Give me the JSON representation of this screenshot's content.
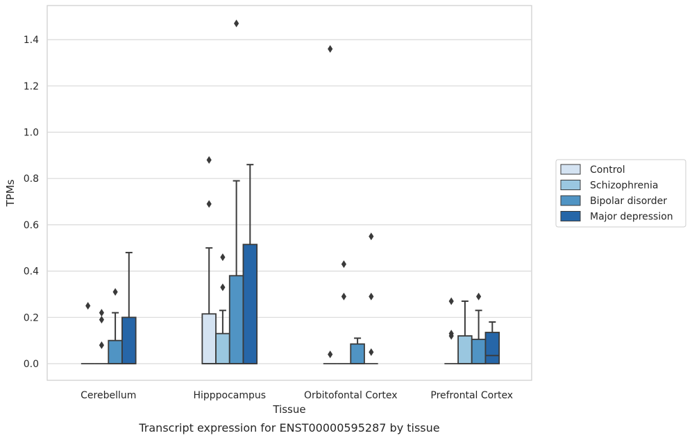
{
  "caption": "Transcript expression for ENST00000595287 by tissue",
  "chart_data": {
    "type": "box",
    "title": "",
    "xlabel": "Tissue",
    "ylabel": "TPMs",
    "ylim": [
      -0.07,
      1.55
    ],
    "yticks": [
      0.0,
      0.2,
      0.4,
      0.6,
      0.8,
      1.0,
      1.2,
      1.4
    ],
    "ytick_labels": [
      "0.0",
      "0.2",
      "0.4",
      "0.6",
      "0.8",
      "1.0",
      "1.2",
      "1.4"
    ],
    "grid": "horizontal",
    "legend_position": "right",
    "categories": [
      "Cerebellum",
      "Hipppocampus",
      "Orbitofontal Cortex",
      "Prefrontal Cortex"
    ],
    "series": [
      {
        "name": "Control",
        "color": "#d4e3f2",
        "boxes": [
          {
            "q1": 0.0,
            "median": 0.0,
            "q3": 0.0,
            "whisker_low": 0.0,
            "whisker_high": 0.0,
            "outliers": [
              0.25
            ]
          },
          {
            "q1": 0.0,
            "median": 0.0,
            "q3": 0.215,
            "whisker_low": 0.0,
            "whisker_high": 0.5,
            "outliers": [
              0.69,
              0.88
            ]
          },
          {
            "q1": 0.0,
            "median": 0.0,
            "q3": 0.0,
            "whisker_low": 0.0,
            "whisker_high": 0.0,
            "outliers": [
              0.04,
              1.36
            ]
          },
          {
            "q1": 0.0,
            "median": 0.0,
            "q3": 0.0,
            "whisker_low": 0.0,
            "whisker_high": 0.0,
            "outliers": [
              0.12,
              0.13,
              0.27
            ]
          }
        ]
      },
      {
        "name": "Schizophrenia",
        "color": "#9ac7e0",
        "boxes": [
          {
            "q1": 0.0,
            "median": 0.0,
            "q3": 0.0,
            "whisker_low": 0.0,
            "whisker_high": 0.0,
            "outliers": [
              0.08,
              0.19,
              0.22
            ]
          },
          {
            "q1": 0.0,
            "median": 0.0,
            "q3": 0.13,
            "whisker_low": 0.0,
            "whisker_high": 0.23,
            "outliers": [
              0.33,
              0.46
            ]
          },
          {
            "q1": 0.0,
            "median": 0.0,
            "q3": 0.0,
            "whisker_low": 0.0,
            "whisker_high": 0.0,
            "outliers": [
              0.29,
              0.43
            ]
          },
          {
            "q1": 0.0,
            "median": 0.0,
            "q3": 0.12,
            "whisker_low": 0.0,
            "whisker_high": 0.27,
            "outliers": []
          }
        ]
      },
      {
        "name": "Bipolar disorder",
        "color": "#5094c4",
        "boxes": [
          {
            "q1": 0.0,
            "median": 0.0,
            "q3": 0.1,
            "whisker_low": 0.0,
            "whisker_high": 0.22,
            "outliers": [
              0.31
            ]
          },
          {
            "q1": 0.0,
            "median": 0.0,
            "q3": 0.38,
            "whisker_low": 0.0,
            "whisker_high": 0.79,
            "outliers": [
              1.47
            ]
          },
          {
            "q1": 0.0,
            "median": 0.0,
            "q3": 0.085,
            "whisker_low": 0.0,
            "whisker_high": 0.11,
            "outliers": []
          },
          {
            "q1": 0.0,
            "median": 0.0,
            "q3": 0.105,
            "whisker_low": 0.0,
            "whisker_high": 0.23,
            "outliers": [
              0.29
            ]
          }
        ]
      },
      {
        "name": "Major depression",
        "color": "#2666a8",
        "boxes": [
          {
            "q1": 0.0,
            "median": 0.0,
            "q3": 0.2,
            "whisker_low": 0.0,
            "whisker_high": 0.48,
            "outliers": []
          },
          {
            "q1": 0.0,
            "median": 0.0,
            "q3": 0.515,
            "whisker_low": 0.0,
            "whisker_high": 0.86,
            "outliers": []
          },
          {
            "q1": 0.0,
            "median": 0.0,
            "q3": 0.0,
            "whisker_low": 0.0,
            "whisker_high": 0.0,
            "outliers": [
              0.05,
              0.29,
              0.55
            ]
          },
          {
            "q1": 0.0,
            "median": 0.035,
            "q3": 0.135,
            "whisker_low": 0.0,
            "whisker_high": 0.18,
            "outliers": []
          }
        ]
      }
    ]
  }
}
